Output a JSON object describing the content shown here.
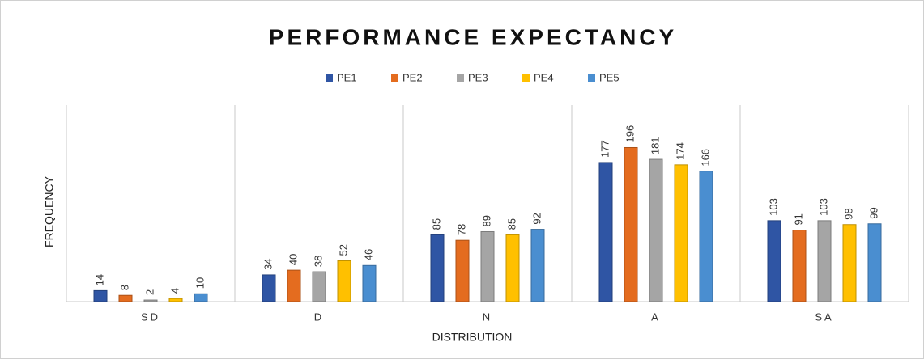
{
  "chart_data": {
    "type": "bar",
    "title": "PERFORMANCE EXPECTANCY",
    "x_label": "DISTRIBUTION",
    "y_label": "FREQUENCY",
    "categories": [
      "SD",
      "D",
      "N",
      "A",
      "SA"
    ],
    "series": [
      {
        "name": "PE1",
        "color": "#2f55a4",
        "values": [
          14,
          34,
          85,
          177,
          103
        ]
      },
      {
        "name": "PE2",
        "color": "#e46c1f",
        "values": [
          8,
          40,
          78,
          196,
          91
        ]
      },
      {
        "name": "PE3",
        "color": "#a5a5a5",
        "values": [
          2,
          38,
          89,
          181,
          103
        ]
      },
      {
        "name": "PE4",
        "color": "#ffc000",
        "values": [
          4,
          52,
          85,
          174,
          98
        ]
      },
      {
        "name": "PE5",
        "color": "#4a8ed0",
        "values": [
          10,
          46,
          92,
          166,
          99
        ]
      }
    ],
    "ylim": [
      0,
      250
    ],
    "legend": "top"
  }
}
